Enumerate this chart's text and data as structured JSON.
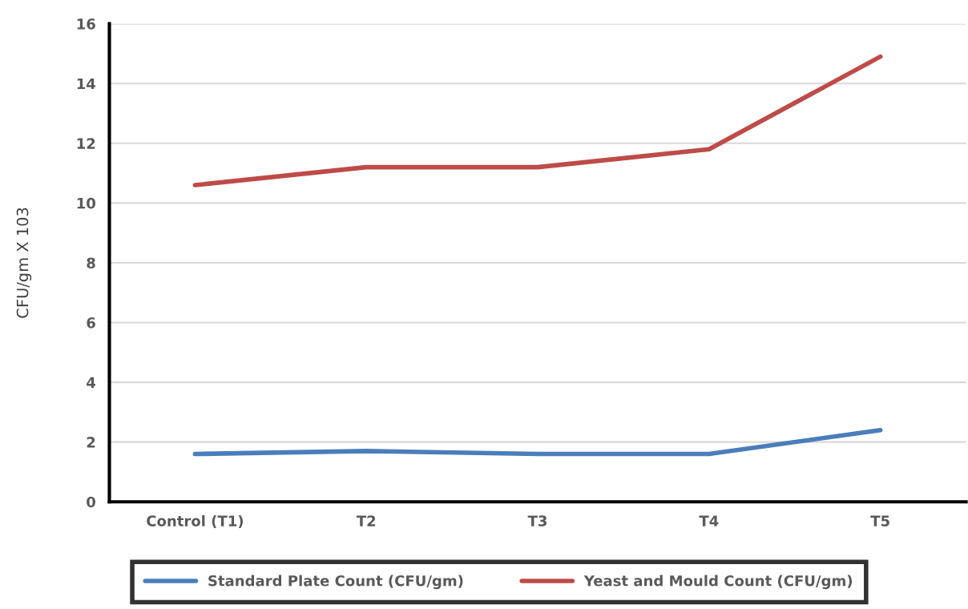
{
  "chart_data": {
    "type": "line",
    "ylabel": "CFU/gm X 103",
    "categories": [
      "Control (T1)",
      "T2",
      "T3",
      "T4",
      "T5"
    ],
    "series": [
      {
        "name": "Standard Plate Count (CFU/gm)",
        "color": "#4a7ebb",
        "values": [
          1.6,
          1.7,
          1.6,
          1.6,
          2.4
        ]
      },
      {
        "name": "Yeast and Mould Count (CFU/gm)",
        "color": "#be4b48",
        "values": [
          10.6,
          11.2,
          11.2,
          11.8,
          14.9
        ]
      }
    ],
    "ylim": [
      0,
      16
    ],
    "yticks": [
      0,
      2,
      4,
      6,
      8,
      10,
      12,
      14,
      16
    ],
    "grid": "y",
    "legend": "bottom",
    "marker": "none",
    "line_style": "solid"
  }
}
